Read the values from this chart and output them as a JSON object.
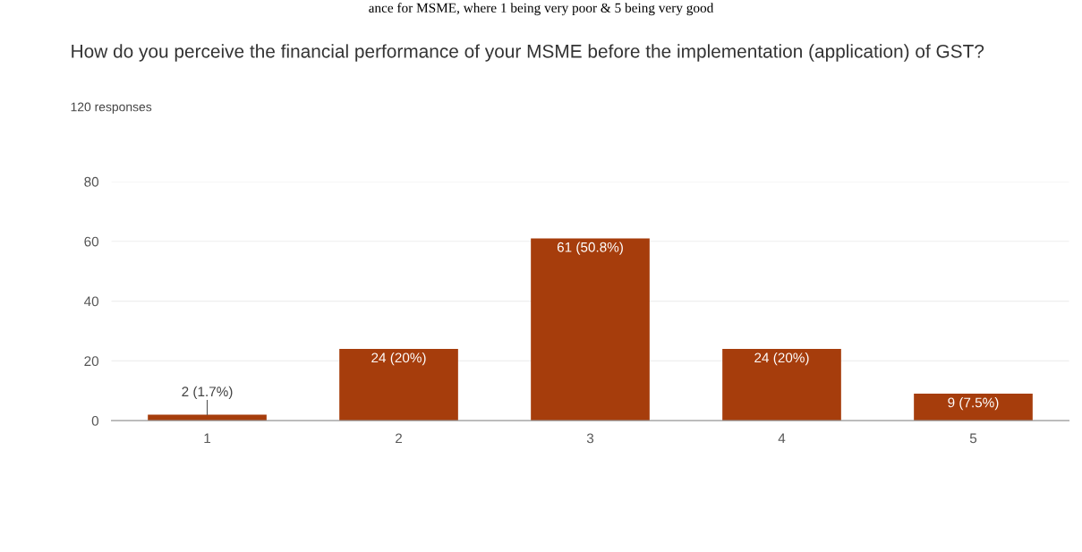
{
  "chart_data": {
    "type": "bar",
    "title": "How do you perceive the financial performance of your MSME before the implementation (application) of GST?",
    "subtitle": "120 responses",
    "annotations": [
      "ance for MSME, where 1 being very poor & 5 being very good"
    ],
    "categories": [
      "1",
      "2",
      "3",
      "4",
      "5"
    ],
    "values": [
      2,
      24,
      61,
      24,
      9
    ],
    "value_labels": [
      "2 (1.7%)",
      "24 (20%)",
      "61 (50.8%)",
      "24 (20%)",
      "9 (7.5%)"
    ],
    "color": "#a63d0c",
    "ylim": [
      0,
      80
    ],
    "yticks": [
      0,
      20,
      40,
      60,
      80
    ],
    "grid": "y"
  }
}
